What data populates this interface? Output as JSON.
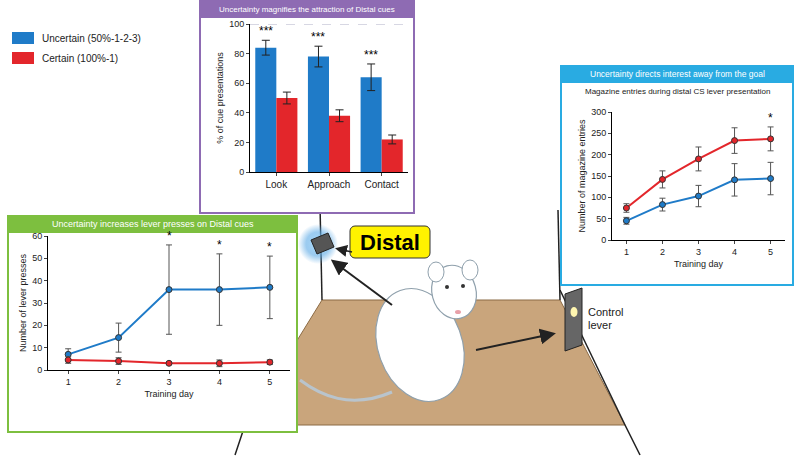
{
  "chart_data": [
    {
      "type": "line",
      "title": "Uncertainty increases lever presses on Distal cues",
      "x": [
        1,
        2,
        3,
        4,
        5
      ],
      "xlabel": "Training day",
      "ylabel": "Number of lever presses",
      "xlim": [
        0.6,
        5.4
      ],
      "xticks": [
        1,
        2,
        3,
        4,
        5
      ],
      "ylim": [
        0,
        60
      ],
      "yticks": [
        0,
        10,
        20,
        30,
        40,
        50,
        60
      ],
      "grid": false,
      "marker": "circle",
      "series": [
        {
          "name": "Uncertain (50%-1-2-3)",
          "color": "#1f7bc8",
          "values": [
            7,
            14.5,
            36,
            36,
            37
          ],
          "errors": [
            2.5,
            6.5,
            20,
            16,
            14
          ]
        },
        {
          "name": "Certain (100%-1)",
          "color": "#e3262b",
          "values": [
            4.5,
            4,
            3,
            3,
            3.5
          ],
          "errors": [
            1.5,
            1.5,
            0.5,
            1.5,
            1
          ]
        }
      ],
      "significance": [
        null,
        null,
        "*",
        "*",
        "*"
      ]
    },
    {
      "type": "bar",
      "title": "Uncertainty magnifies the attraction of Distal cues",
      "categories": [
        "Look",
        "Approach",
        "Contact"
      ],
      "ylabel": "% of cue presentations",
      "ylim": [
        0,
        100
      ],
      "yticks": [
        0,
        20,
        40,
        60,
        80,
        100
      ],
      "grid": false,
      "reference_line": 100,
      "series": [
        {
          "name": "Uncertain (50%-1-2-3)",
          "color": "#1f7bc8",
          "values": [
            84,
            78,
            64
          ],
          "errors": [
            5,
            7,
            9
          ]
        },
        {
          "name": "Certain (100%-1)",
          "color": "#e3262b",
          "values": [
            50,
            38,
            22
          ],
          "errors": [
            4,
            4,
            3
          ]
        }
      ],
      "significance": [
        "***",
        "***",
        "***"
      ]
    },
    {
      "type": "line",
      "title": "Uncertainty directs interest away from the goal",
      "subtitle": "Magazine entries during distal CS lever presentation",
      "x": [
        1,
        2,
        3,
        4,
        5
      ],
      "xlabel": "Training day",
      "ylabel": "Number of magazine entries",
      "xlim": [
        0.6,
        5.4
      ],
      "xticks": [
        1,
        2,
        3,
        4,
        5
      ],
      "ylim": [
        0,
        300
      ],
      "yticks": [
        0,
        50,
        100,
        150,
        200,
        250,
        300
      ],
      "grid": false,
      "marker": "circle",
      "series": [
        {
          "name": "Uncertain (50%-1-2-3)",
          "color": "#1f7bc8",
          "values": [
            45,
            83,
            103,
            141,
            144
          ],
          "errors": [
            8,
            15,
            25,
            38,
            38
          ]
        },
        {
          "name": "Certain (100%-1)",
          "color": "#e3262b",
          "values": [
            75,
            142,
            190,
            233,
            237
          ],
          "errors": [
            10,
            20,
            28,
            30,
            28
          ]
        }
      ],
      "significance": [
        null,
        null,
        null,
        null,
        "*"
      ]
    }
  ],
  "diagram": {
    "cue_label": "Distal",
    "control_label": "Control lever"
  }
}
